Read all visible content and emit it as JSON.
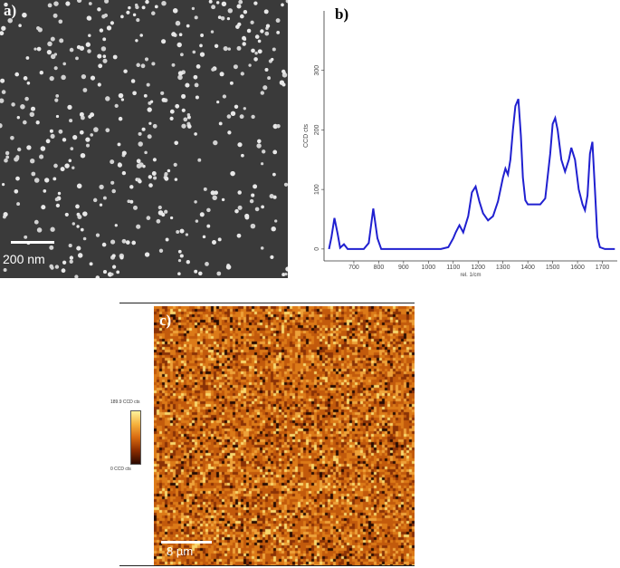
{
  "panel_a": {
    "label": "a)",
    "scale_bar": "200 nm"
  },
  "panel_b": {
    "label": "b)"
  },
  "panel_c": {
    "label": "c)",
    "scale_bar": "8 µm",
    "colorbar_max": "189.9 CCD cts",
    "colorbar_min": "0 CCD cts"
  },
  "chart_data": {
    "type": "line",
    "title": "",
    "xlabel": "rel. 1/cm",
    "ylabel": "CCD cts",
    "xlim": [
      580,
      1760
    ],
    "ylim": [
      -20,
      400
    ],
    "xticks": [
      700,
      800,
      900,
      1000,
      1100,
      1200,
      1300,
      1400,
      1500,
      1600,
      1700
    ],
    "yticks": [
      0,
      100,
      200,
      300
    ],
    "series": [
      {
        "color": "#2020d0",
        "x": [
          600,
          610,
          622,
          635,
          645,
          660,
          675,
          700,
          740,
          760,
          778,
          795,
          810,
          850,
          950,
          1050,
          1080,
          1100,
          1110,
          1125,
          1140,
          1160,
          1175,
          1190,
          1205,
          1220,
          1240,
          1260,
          1280,
          1300,
          1310,
          1320,
          1330,
          1340,
          1350,
          1362,
          1372,
          1380,
          1390,
          1400,
          1420,
          1450,
          1470,
          1490,
          1500,
          1510,
          1520,
          1535,
          1550,
          1565,
          1575,
          1590,
          1605,
          1620,
          1630,
          1640,
          1650,
          1660,
          1670,
          1680,
          1690,
          1710,
          1750
        ],
        "y": [
          0,
          20,
          52,
          25,
          2,
          8,
          0,
          0,
          0,
          10,
          68,
          18,
          0,
          0,
          0,
          0,
          3,
          18,
          28,
          40,
          28,
          55,
          95,
          105,
          80,
          60,
          48,
          55,
          80,
          120,
          135,
          125,
          150,
          200,
          240,
          252,
          190,
          120,
          82,
          75,
          75,
          75,
          85,
          160,
          210,
          220,
          200,
          150,
          130,
          150,
          170,
          150,
          100,
          75,
          65,
          90,
          160,
          180,
          100,
          20,
          3,
          0,
          0
        ]
      }
    ]
  }
}
